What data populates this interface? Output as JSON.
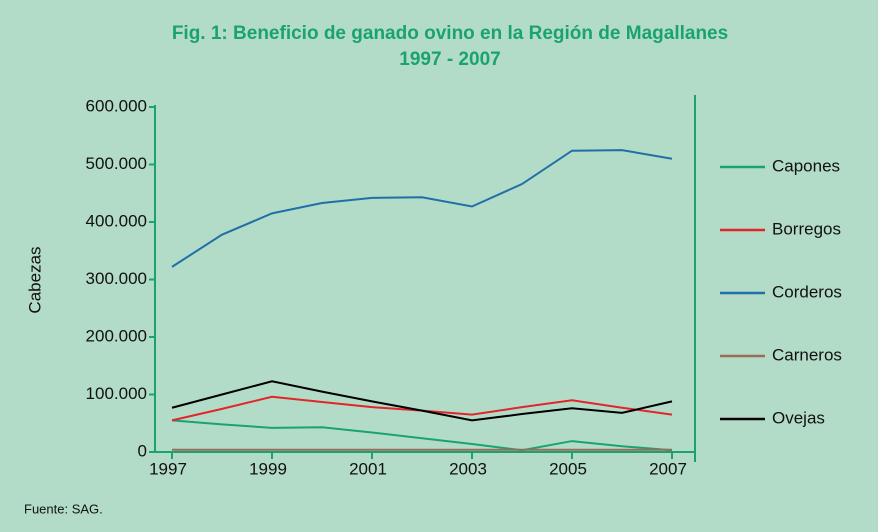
{
  "chart_data": {
    "type": "line",
    "title": "Fig. 1: Beneficio de ganado ovino en la Región de Magallanes",
    "subtitle": "1997 - 2007",
    "y_label": "Cabezas",
    "source": "Fuente: SAG.",
    "x": [
      1997,
      1998,
      1999,
      2000,
      2001,
      2002,
      2003,
      2004,
      2005,
      2006,
      2007
    ],
    "xlim": [
      1996.66,
      2007.46
    ],
    "xticks": [
      1997,
      1999,
      2001,
      2003,
      2005,
      2007
    ],
    "ylim": [
      0,
      600000
    ],
    "yticks": [
      0,
      {
        "value": 100000,
        "label": "100.000"
      },
      {
        "value": 200000,
        "label": "200.000"
      },
      {
        "value": 300000,
        "label": "300.000"
      },
      {
        "value": 400000,
        "label": "400.000"
      },
      {
        "value": 500000,
        "label": "500.000"
      },
      {
        "value": 600000,
        "label": "600.000"
      }
    ],
    "legend": "right",
    "series": [
      {
        "name": "Capones",
        "color": "#1aa36f",
        "values": [
          55000,
          48000,
          42000,
          43000,
          34000,
          24000,
          14000,
          3000,
          19000,
          10000,
          3000
        ]
      },
      {
        "name": "Borregos",
        "color": "#e0262a",
        "values": [
          55000,
          75000,
          96000,
          87000,
          78000,
          72000,
          65000,
          78000,
          90000,
          77000,
          65000
        ]
      },
      {
        "name": "Corderos",
        "color": "#1f6fa8",
        "values": [
          322000,
          378000,
          415000,
          433000,
          442000,
          443000,
          427000,
          466000,
          524000,
          525000,
          510000
        ]
      },
      {
        "name": "Carneros",
        "color": "#9a6a5a",
        "values": [
          4000,
          4000,
          4000,
          4000,
          4000,
          4000,
          4000,
          4000,
          4000,
          4000,
          4000
        ]
      },
      {
        "name": "Ovejas",
        "color": "#000000",
        "values": [
          77000,
          100000,
          123000,
          105000,
          88000,
          72000,
          55000,
          66000,
          76000,
          68000,
          88000
        ]
      }
    ]
  }
}
